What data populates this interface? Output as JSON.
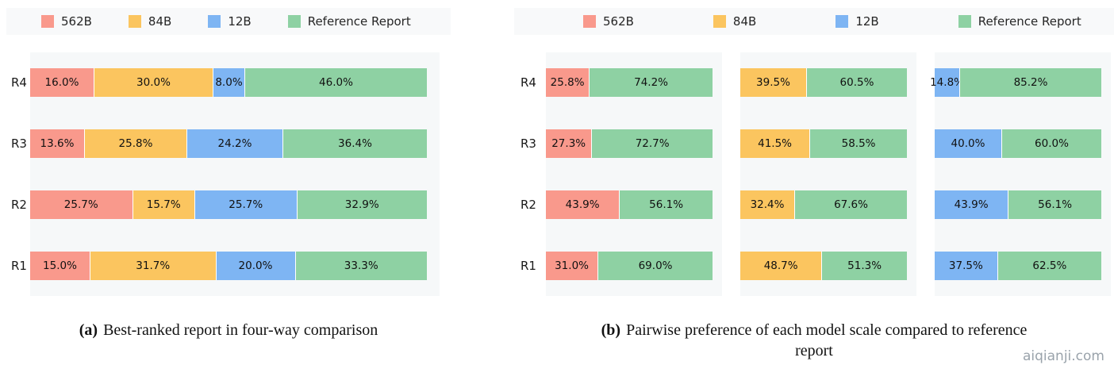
{
  "page": {
    "watermark": "aiqianji.com"
  },
  "colors": {
    "562B": "#F9998C",
    "84B": "#FBC55F",
    "12B": "#7EB5F3",
    "Reference Report": "#8ED1A3"
  },
  "legend": {
    "items": [
      "562B",
      "84B",
      "12B",
      "Reference Report"
    ]
  },
  "captions": {
    "a": {
      "prefix": "(a)",
      "text": "Best-ranked report in four-way comparison"
    },
    "b": {
      "prefix": "(b)",
      "line1": "Pairwise preference of each model scale compared to reference",
      "line2": "report"
    }
  },
  "chart_data": [
    {
      "type": "bar",
      "orientation": "horizontal",
      "stacked": true,
      "title": "(a) Best-ranked report in four-way comparison",
      "categories": [
        "R4",
        "R3",
        "R2",
        "R1"
      ],
      "series": [
        {
          "name": "562B",
          "values": [
            16.0,
            13.6,
            25.7,
            15.0
          ]
        },
        {
          "name": "84B",
          "values": [
            30.0,
            25.8,
            15.7,
            31.7
          ]
        },
        {
          "name": "12B",
          "values": [
            8.0,
            24.2,
            25.7,
            20.0
          ]
        },
        {
          "name": "Reference Report",
          "values": [
            46.0,
            36.4,
            32.9,
            33.3
          ]
        }
      ],
      "xlim": [
        0,
        100
      ],
      "value_suffix": "%",
      "legend_position": "top",
      "grid": false
    },
    {
      "type": "bar",
      "orientation": "horizontal",
      "stacked": true,
      "title": "(b) Pairwise preference of each model scale compared to reference report",
      "categories": [
        "R4",
        "R3",
        "R2",
        "R1"
      ],
      "panels": [
        {
          "model": "562B",
          "reference": "Reference Report",
          "rows": [
            [
              25.8,
              74.2
            ],
            [
              27.3,
              72.7
            ],
            [
              43.9,
              56.1
            ],
            [
              31.0,
              69.0
            ]
          ]
        },
        {
          "model": "84B",
          "reference": "Reference Report",
          "rows": [
            [
              39.5,
              60.5
            ],
            [
              41.5,
              58.5
            ],
            [
              32.4,
              67.6
            ],
            [
              48.7,
              51.3
            ]
          ]
        },
        {
          "model": "12B",
          "reference": "Reference Report",
          "rows": [
            [
              14.8,
              85.2
            ],
            [
              40.0,
              60.0
            ],
            [
              43.9,
              56.1
            ],
            [
              37.5,
              62.5
            ]
          ]
        }
      ],
      "xlim": [
        0,
        100
      ],
      "value_suffix": "%",
      "legend_position": "top",
      "grid": false
    }
  ]
}
